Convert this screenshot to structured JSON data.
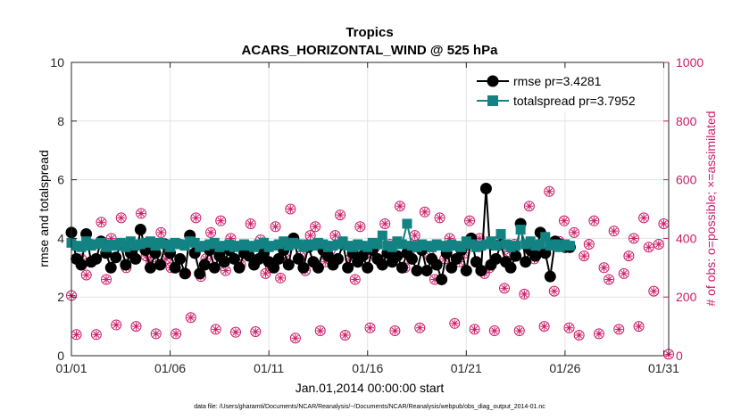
{
  "colors": {
    "rmse": "#000000",
    "spread": "#138282",
    "obs": "#cc1a66",
    "grid": "#e2e2e2"
  },
  "chart_data": {
    "type": "line",
    "title": "Tropics",
    "subtitle": "ACARS_HORIZONTAL_WIND @ 525 hPa",
    "xlabel": "Jan.01,2014 00:00:00 start",
    "ylabel": "rmse and totalspread",
    "y2label": "# of obs: o=possible; ×=assimilated",
    "footnote": "data file: /Users/gharamti/Documents/NCAR/Reanalysis/~/Documents/NCAR/Reanalysis/webpub/obs_diag_output_2014-01.nc",
    "xlim": [
      1,
      31.25
    ],
    "ylim": [
      0,
      10
    ],
    "y2lim": [
      0,
      1000
    ],
    "xticks": [
      1,
      6,
      11,
      16,
      21,
      26,
      31
    ],
    "xticklabels": [
      "01/01",
      "01/06",
      "01/11",
      "01/16",
      "01/21",
      "01/26",
      "01/31"
    ],
    "yticks": [
      0,
      2,
      4,
      6,
      8,
      10
    ],
    "yticklabels": [
      "0",
      "2",
      "4",
      "6",
      "8",
      "10"
    ],
    "y2ticks": [
      0,
      200,
      400,
      600,
      800,
      1000
    ],
    "y2ticklabels": [
      "0",
      "200",
      "400",
      "600",
      "800",
      "1000"
    ],
    "legend_position": "top-right",
    "step_days": 0.25,
    "series": [
      {
        "name": "rmse pr=3.4281",
        "axis": "left",
        "marker": "circle",
        "values": [
          4.2,
          3.3,
          3.1,
          4.15,
          3.2,
          3.3,
          3.9,
          3.5,
          3.0,
          3.35,
          3.8,
          3.1,
          3.5,
          3.3,
          4.3,
          3.6,
          3.0,
          3.5,
          3.1,
          3.8,
          3.5,
          3.0,
          3.3,
          2.8,
          4.1,
          3.5,
          2.8,
          3.1,
          3.6,
          3.0,
          3.4,
          3.2,
          3.6,
          3.3,
          3.0,
          3.5,
          3.4,
          3.1,
          3.3,
          3.5,
          3.2,
          3.0,
          3.3,
          3.6,
          3.1,
          4.0,
          3.3,
          3.0,
          3.7,
          3.2,
          3.0,
          3.6,
          3.4,
          3.1,
          3.3,
          3.8,
          3.0,
          3.5,
          3.2,
          3.4,
          3.0,
          3.6,
          3.3,
          3.1,
          3.5,
          3.2,
          3.4,
          3.0,
          3.5,
          3.3,
          2.9,
          3.6,
          2.9,
          3.3,
          3.1,
          2.6,
          3.5,
          3.0,
          3.3,
          3.6,
          2.9,
          4.0,
          3.2,
          2.9,
          5.7,
          3.1,
          3.3,
          3.8,
          3.2,
          3.0,
          3.4,
          4.5,
          3.2,
          3.6,
          3.4,
          4.2,
          3.5,
          2.7,
          3.9,
          3.8,
          3.7,
          3.7
        ]
      },
      {
        "name": "totalspread pr=3.7952",
        "axis": "left",
        "marker": "square",
        "values": [
          3.85,
          3.75,
          3.7,
          3.9,
          3.75,
          3.8,
          3.85,
          3.7,
          3.8,
          3.75,
          3.85,
          3.7,
          3.9,
          3.75,
          3.8,
          3.85,
          3.9,
          3.75,
          3.85,
          3.8,
          3.7,
          3.85,
          3.8,
          3.75,
          3.9,
          3.85,
          3.7,
          3.75,
          3.8,
          3.85,
          3.7,
          3.75,
          3.8,
          3.7,
          3.75,
          3.8,
          3.75,
          3.7,
          3.8,
          3.85,
          3.7,
          3.75,
          3.8,
          3.9,
          3.75,
          3.85,
          3.8,
          3.7,
          3.8,
          3.75,
          3.85,
          3.8,
          3.7,
          3.75,
          3.8,
          3.9,
          3.75,
          3.7,
          3.8,
          3.75,
          3.7,
          3.85,
          3.8,
          4.1,
          3.75,
          3.7,
          3.9,
          3.8,
          4.5,
          3.75,
          3.7,
          3.8,
          3.75,
          3.7,
          3.8,
          3.75,
          3.7,
          3.8,
          3.75,
          3.7,
          3.9,
          3.8,
          3.7,
          3.75,
          3.8,
          3.9,
          3.75,
          4.15,
          3.8,
          3.7,
          3.75,
          4.3,
          3.8,
          3.9,
          3.75,
          3.8,
          4.05,
          3.75,
          3.8,
          3.7,
          3.8,
          3.75
        ]
      },
      {
        "name": "obs possible",
        "axis": "right",
        "marker": "open-circle",
        "values": [
          205,
          72,
          330,
          275,
          380,
          72,
          455,
          260,
          400,
          105,
          470,
          300,
          350,
          100,
          485,
          340,
          320,
          75,
          420,
          330,
          300,
          75,
          380,
          280,
          130,
          470,
          270,
          330,
          420,
          90,
          460,
          290,
          400,
          80,
          310,
          350,
          450,
          82,
          395,
          280,
          300,
          440,
          265,
          330,
          500,
          60,
          340,
          290,
          410,
          440,
          85,
          320,
          360,
          410,
          480,
          70,
          330,
          260,
          440,
          345,
          95,
          370,
          320,
          450,
          380,
          85,
          510,
          300,
          360,
          410,
          95,
          490,
          340,
          260,
          470,
          330,
          400,
          110,
          320,
          350,
          460,
          90,
          400,
          280,
          300,
          85,
          395,
          230,
          355,
          380,
          85,
          210,
          510,
          330,
          355,
          100,
          560,
          220,
          390,
          460,
          95,
          420,
          70,
          340,
          380,
          460,
          75,
          300,
          260,
          425,
          90,
          280,
          340,
          400,
          100,
          470,
          370,
          220,
          380,
          450,
          5
        ]
      },
      {
        "name": "obs assimilated",
        "axis": "right",
        "marker": "asterisk",
        "values": [
          205,
          72,
          330,
          275,
          380,
          72,
          455,
          260,
          400,
          105,
          470,
          300,
          350,
          100,
          485,
          340,
          320,
          75,
          420,
          330,
          300,
          75,
          380,
          280,
          130,
          470,
          270,
          330,
          420,
          90,
          460,
          290,
          400,
          80,
          310,
          350,
          450,
          82,
          395,
          280,
          300,
          440,
          265,
          330,
          500,
          60,
          340,
          290,
          410,
          440,
          85,
          320,
          360,
          410,
          480,
          70,
          330,
          260,
          440,
          345,
          95,
          370,
          320,
          450,
          380,
          85,
          510,
          300,
          360,
          410,
          95,
          490,
          340,
          260,
          470,
          330,
          400,
          110,
          320,
          350,
          460,
          90,
          400,
          280,
          300,
          85,
          395,
          230,
          355,
          380,
          85,
          210,
          510,
          330,
          355,
          100,
          560,
          220,
          390,
          460,
          95,
          420,
          70,
          340,
          380,
          460,
          75,
          300,
          260,
          425,
          90,
          280,
          340,
          400,
          100,
          470,
          370,
          220,
          380,
          450,
          5
        ]
      }
    ]
  }
}
